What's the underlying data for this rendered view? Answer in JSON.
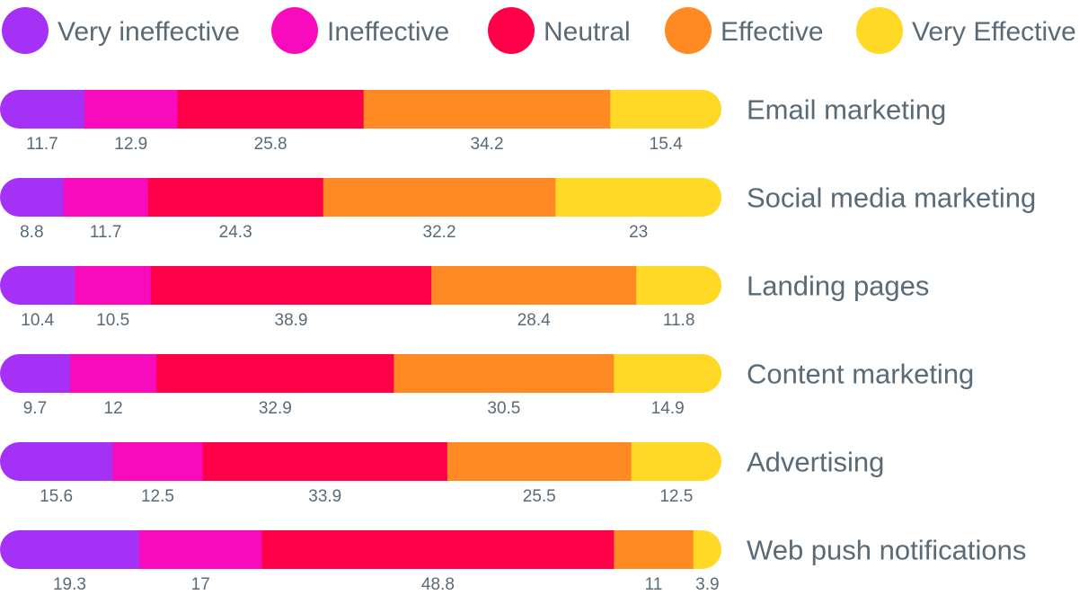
{
  "chart_data": {
    "type": "bar",
    "orientation": "horizontal",
    "stacked": true,
    "normalized": true,
    "title": "",
    "xlabel": "",
    "ylabel": "",
    "legend_position": "top",
    "grid": false,
    "categories": [
      "Email marketing",
      "Social media marketing",
      "Landing pages",
      "Content marketing",
      "Advertising",
      "Web push notifications"
    ],
    "series": [
      {
        "name": "Very ineffective",
        "color": "#a531f7",
        "values": [
          11.7,
          8.8,
          10.4,
          9.7,
          15.6,
          19.3
        ]
      },
      {
        "name": "Ineffective",
        "color": "#f70bbd",
        "values": [
          12.9,
          11.7,
          10.5,
          12,
          12.5,
          17
        ]
      },
      {
        "name": "Neutral",
        "color": "#ff0048",
        "values": [
          25.8,
          24.3,
          38.9,
          32.9,
          33.9,
          48.8
        ]
      },
      {
        "name": "Effective",
        "color": "#ff8a24",
        "values": [
          34.2,
          32.2,
          28.4,
          30.5,
          25.5,
          11
        ]
      },
      {
        "name": "Very Effective",
        "color": "#ffd926",
        "values": [
          15.4,
          23,
          11.8,
          14.9,
          12.5,
          3.9
        ]
      }
    ]
  }
}
